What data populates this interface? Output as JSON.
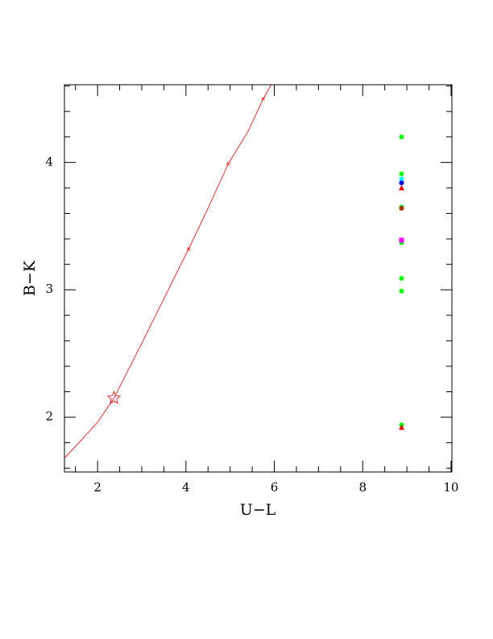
{
  "chart_data": {
    "type": "scatter",
    "x_label": "U−L",
    "y_label": "B−K",
    "xlim": [
      1.25,
      10.02
    ],
    "ylim": [
      1.57,
      4.61
    ],
    "xticks": [
      2,
      4,
      6,
      8,
      10
    ],
    "yticks": [
      2,
      3,
      4
    ],
    "xminorticks": [
      1.5,
      2.5,
      3,
      3.5,
      4.5,
      5,
      5.5,
      6.5,
      7,
      7.5,
      8.5,
      9,
      9.5
    ],
    "yminorticks": [
      1.6,
      1.8,
      2.2,
      2.4,
      2.6,
      2.8,
      3.2,
      3.4,
      3.6,
      3.8,
      4.2,
      4.4,
      4.6
    ],
    "series": [
      {
        "marker": "line",
        "color": "#ff0000",
        "x": [
          1.25,
          1.5,
          2.0,
          2.37,
          3.0,
          3.5,
          4.06,
          4.5,
          4.96,
          5.4,
          5.75,
          5.93
        ],
        "y": [
          1.68,
          1.77,
          1.96,
          2.15,
          2.58,
          2.93,
          3.32,
          3.64,
          3.99,
          4.24,
          4.5,
          4.61
        ]
      },
      {
        "marker": "cross",
        "color": "#ff0000",
        "x": [
          4.06,
          4.96,
          5.75
        ],
        "y": [
          3.32,
          3.99,
          4.5
        ]
      },
      {
        "marker": "star",
        "color": "#ff0000",
        "x": [
          2.37
        ],
        "y": [
          2.15
        ]
      },
      {
        "marker": "circle",
        "color": "#00ff00",
        "x": [
          8.88,
          8.88,
          8.88,
          8.88,
          8.88,
          8.88,
          8.88
        ],
        "y": [
          4.2,
          3.91,
          3.65,
          3.37,
          3.09,
          2.99,
          1.94
        ]
      },
      {
        "marker": "circle",
        "color": "#00ffff",
        "x": [
          8.88
        ],
        "y": [
          3.87
        ]
      },
      {
        "marker": "circle",
        "color": "#0000ff",
        "x": [
          8.88
        ],
        "y": [
          3.84
        ]
      },
      {
        "marker": "triangle",
        "color": "#ff0000",
        "x": [
          8.88,
          8.88
        ],
        "y": [
          3.8,
          1.92
        ]
      },
      {
        "marker": "circle",
        "color": "#b03000",
        "x": [
          8.88
        ],
        "y": [
          3.64
        ]
      },
      {
        "marker": "square",
        "color": "#ff00ff",
        "x": [
          8.88
        ],
        "y": [
          3.39
        ]
      }
    ]
  }
}
